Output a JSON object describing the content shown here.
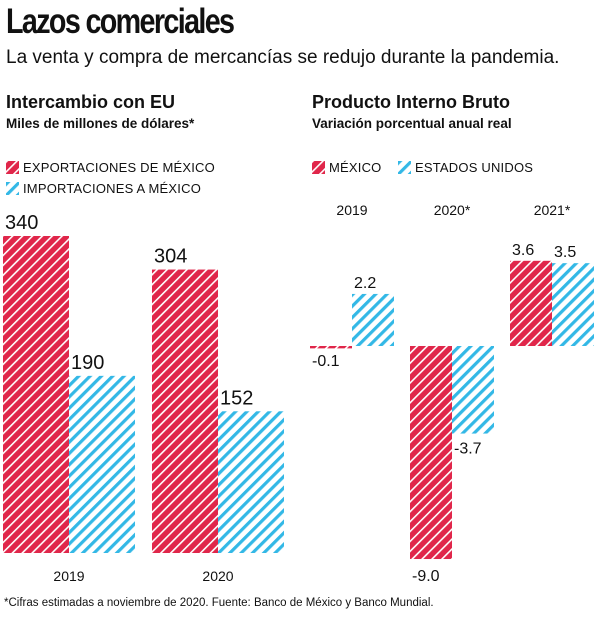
{
  "header": {
    "title": "Lazos comerciales",
    "subtitle": "La venta y compra de mercancías se redujo durante la pandemia."
  },
  "colors": {
    "mexico": "#e0264a",
    "us": "#33b8e6"
  },
  "footnote": "*Cifras estimadas a noviembre de 2020. Fuente: Banco de México y Banco Mundial.",
  "chart_data": [
    {
      "type": "bar",
      "title": "Intercambio con EU",
      "subtitle": "Miles de millones de dólares*",
      "categories": [
        "2019",
        "2020"
      ],
      "series": [
        {
          "name": "EXPORTACIONES DE MÉXICO",
          "values": [
            340,
            304
          ],
          "labels": [
            "340",
            "304"
          ]
        },
        {
          "name": "IMPORTACIONES A MÉXICO",
          "values": [
            190,
            152
          ],
          "labels": [
            "190",
            "152"
          ]
        }
      ],
      "ylim": [
        0,
        340
      ],
      "grid": false,
      "legend": "top-left"
    },
    {
      "type": "bar",
      "title": "Producto Interno Bruto",
      "subtitle": "Variación porcentual anual real",
      "categories": [
        "2019",
        "2020*",
        "2021*"
      ],
      "series": [
        {
          "name": "MÉXICO",
          "values": [
            -0.1,
            -9.0,
            3.6
          ],
          "labels": [
            "-0.1",
            "-9.0",
            "3.6"
          ]
        },
        {
          "name": "ESTADOS UNIDOS",
          "values": [
            2.2,
            -3.7,
            3.5
          ],
          "labels": [
            "2.2",
            "-3.7",
            "3.5"
          ]
        }
      ],
      "ylim": [
        -9.0,
        3.6
      ],
      "grid": false,
      "legend": "top-left"
    }
  ]
}
